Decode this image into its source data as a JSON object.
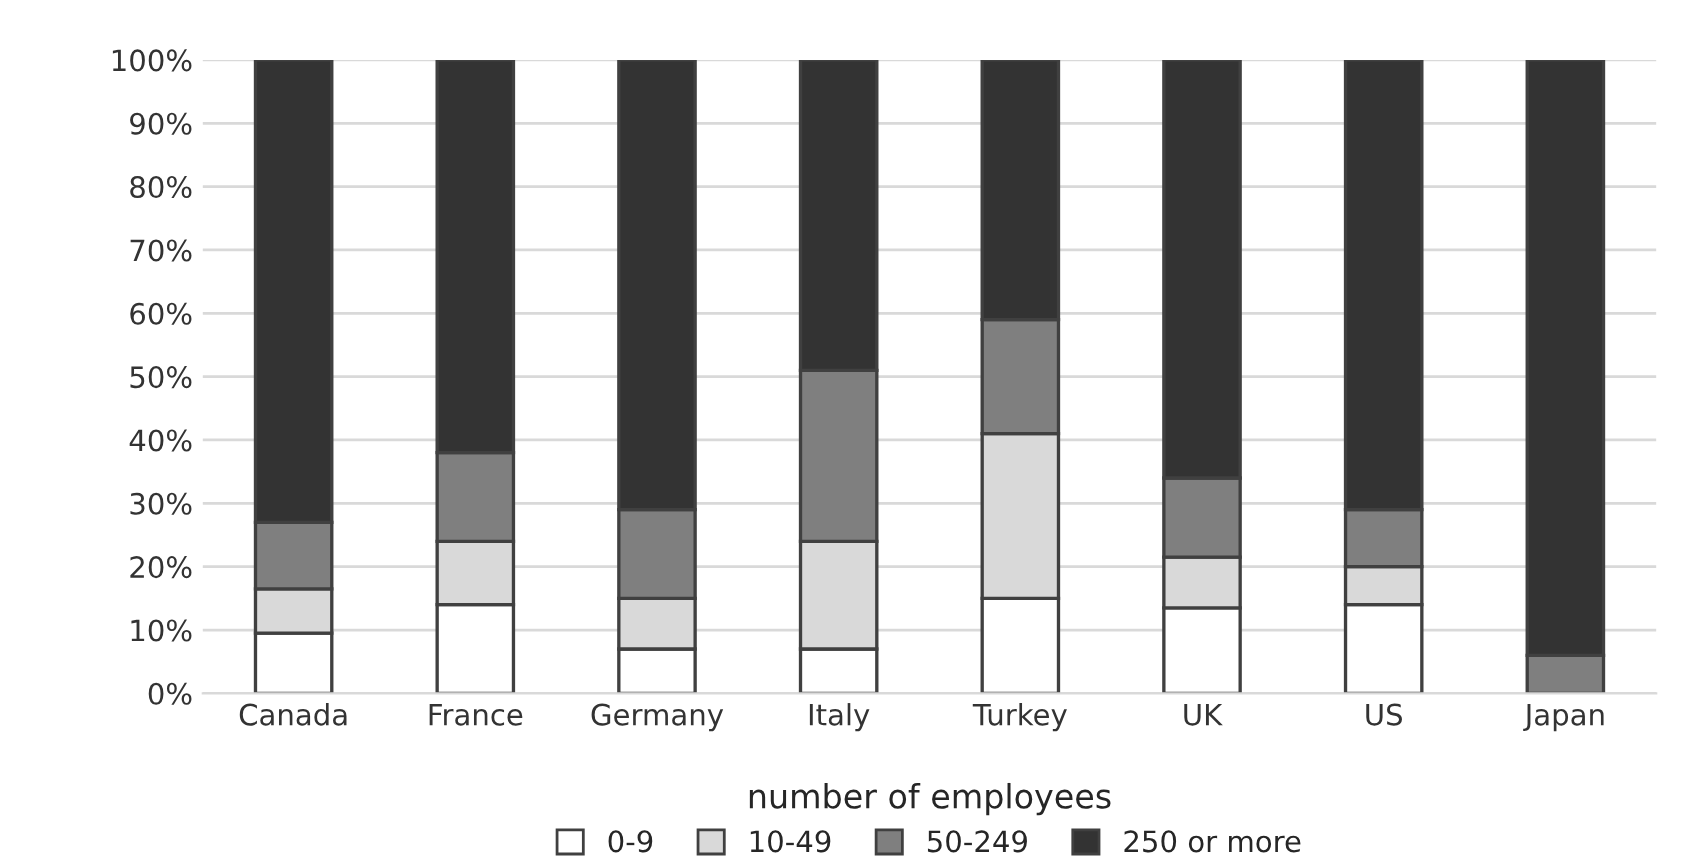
{
  "chart_data": {
    "type": "bar",
    "stacked": true,
    "categories": [
      "Canada",
      "France",
      "Germany",
      "Italy",
      "Turkey",
      "UK",
      "US",
      "Japan"
    ],
    "series": [
      {
        "name": "0-9",
        "color": "#ffffff",
        "values": [
          9.5,
          14,
          7,
          7,
          15,
          13.5,
          14,
          0
        ]
      },
      {
        "name": "10-49",
        "color": "#d9d9d9",
        "values": [
          7,
          10,
          8,
          17,
          26,
          8,
          6,
          0
        ]
      },
      {
        "name": "50-249",
        "color": "#7f7f7f",
        "values": [
          10.5,
          14,
          14,
          27,
          18,
          12.5,
          9,
          6
        ]
      },
      {
        "name": "250 or more",
        "color": "#333333",
        "values": [
          73,
          62,
          71,
          49,
          41,
          66,
          71,
          94
        ]
      }
    ],
    "ylim": [
      0,
      100
    ],
    "yticks": [
      {
        "value": 0,
        "label": "0%"
      },
      {
        "value": 10,
        "label": "10%"
      },
      {
        "value": 20,
        "label": "20%"
      },
      {
        "value": 30,
        "label": "30%"
      },
      {
        "value": 40,
        "label": "40%"
      },
      {
        "value": 50,
        "label": "50%"
      },
      {
        "value": 60,
        "label": "60%"
      },
      {
        "value": 70,
        "label": "70%"
      },
      {
        "value": 80,
        "label": "80%"
      },
      {
        "value": 90,
        "label": "90%"
      },
      {
        "value": 100,
        "label": "100%"
      }
    ],
    "grid": "y",
    "legend": "bottom",
    "legend_title": "number of employees"
  }
}
